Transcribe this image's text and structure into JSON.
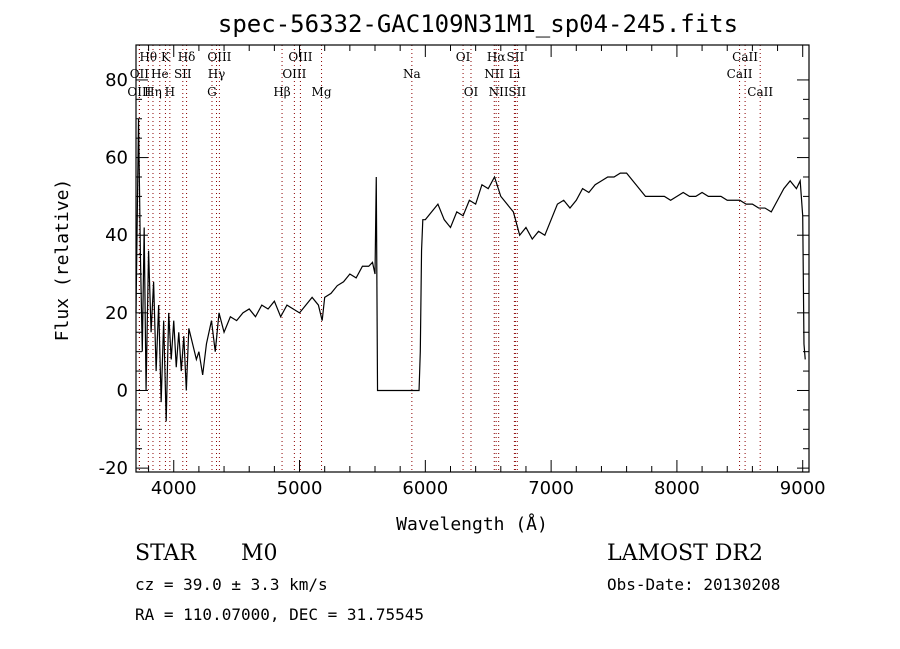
{
  "chart_data": {
    "type": "line",
    "title": "spec-56332-GAC109N31M1_sp04-245.fits",
    "xlabel": "Wavelength (Å)",
    "ylabel": "Flux (relative)",
    "xlim": [
      3700,
      9050
    ],
    "ylim": [
      -21,
      89
    ],
    "x_ticks": [
      "4000",
      "5000",
      "6000",
      "7000",
      "8000",
      "9000"
    ],
    "y_ticks": [
      "-20",
      "0",
      "20",
      "40",
      "60",
      "80"
    ],
    "grid": false,
    "line_color": "#000000",
    "marker_color": "#8b0000",
    "series": [
      {
        "x": [
          3700,
          3720,
          3735,
          3750,
          3765,
          3780,
          3800,
          3820,
          3840,
          3860,
          3880,
          3900,
          3920,
          3940,
          3960,
          3980,
          4000,
          4020,
          4040,
          4060,
          4080,
          4100,
          4120,
          4150,
          4180,
          4200,
          4230,
          4260,
          4300,
          4330,
          4360,
          4400,
          4450,
          4500,
          4550,
          4600,
          4650,
          4700,
          4750,
          4800,
          4850,
          4900,
          4950,
          5000,
          5050,
          5100,
          5150,
          5180,
          5200,
          5250,
          5300,
          5350,
          5400,
          5450,
          5500,
          5550,
          5580,
          5600,
          5610,
          5620,
          5630,
          5650,
          5700,
          5800,
          5900,
          5950,
          5960,
          5970,
          5980,
          6000,
          6050,
          6100,
          6150,
          6200,
          6250,
          6300,
          6350,
          6400,
          6450,
          6500,
          6550,
          6600,
          6650,
          6700,
          6750,
          6800,
          6850,
          6900,
          6950,
          7000,
          7050,
          7100,
          7150,
          7200,
          7250,
          7300,
          7350,
          7400,
          7450,
          7500,
          7550,
          7600,
          7650,
          7700,
          7750,
          7800,
          7850,
          7900,
          7950,
          8000,
          8050,
          8100,
          8150,
          8200,
          8250,
          8300,
          8350,
          8400,
          8450,
          8500,
          8550,
          8600,
          8650,
          8700,
          8750,
          8800,
          8850,
          8900,
          8950,
          8980,
          9000,
          9010,
          9020
        ],
        "y": [
          20,
          70,
          35,
          10,
          42,
          0,
          36,
          15,
          28,
          5,
          22,
          -3,
          18,
          -8,
          20,
          8,
          18,
          6,
          15,
          5,
          14,
          0,
          16,
          12,
          8,
          10,
          4,
          12,
          18,
          10,
          20,
          15,
          19,
          18,
          20,
          21,
          19,
          22,
          21,
          23,
          19,
          22,
          21,
          20,
          22,
          24,
          22,
          18,
          24,
          25,
          27,
          28,
          30,
          29,
          32,
          32,
          33,
          30,
          55,
          0,
          0,
          0,
          0,
          0,
          0,
          0,
          10,
          36,
          44,
          44,
          46,
          48,
          44,
          42,
          46,
          45,
          49,
          48,
          53,
          52,
          55,
          50,
          48,
          46,
          40,
          42,
          39,
          41,
          40,
          44,
          48,
          49,
          47,
          49,
          52,
          51,
          53,
          54,
          55,
          55,
          56,
          56,
          54,
          52,
          50,
          50,
          50,
          50,
          49,
          50,
          51,
          50,
          50,
          51,
          50,
          50,
          50,
          49,
          49,
          49,
          48,
          48,
          47,
          47,
          46,
          49,
          52,
          54,
          52,
          54,
          45,
          12,
          8
        ]
      }
    ],
    "spectral_lines": [
      {
        "label": "Hθ",
        "x": 3798,
        "row": 0
      },
      {
        "label": "OII",
        "x": 3727,
        "row": 1
      },
      {
        "label": "OIII",
        "x": 3727,
        "row": 2
      },
      {
        "label": "Hη",
        "x": 3835,
        "row": 2
      },
      {
        "label": "He",
        "x": 3889,
        "row": 1
      },
      {
        "label": "K",
        "x": 3934,
        "row": 0
      },
      {
        "label": "H",
        "x": 3969,
        "row": 2
      },
      {
        "label": "Hδ",
        "x": 4102,
        "row": 0
      },
      {
        "label": "SII",
        "x": 4072,
        "row": 1
      },
      {
        "label": "OIII",
        "x": 4363,
        "row": 0
      },
      {
        "label": "Hγ",
        "x": 4340,
        "row": 1
      },
      {
        "label": "G",
        "x": 4304,
        "row": 2
      },
      {
        "label": "OIII",
        "x": 5007,
        "row": 0
      },
      {
        "label": "OIII",
        "x": 4959,
        "row": 1
      },
      {
        "label": "Hβ",
        "x": 4861,
        "row": 2
      },
      {
        "label": "Mg",
        "x": 5175,
        "row": 2
      },
      {
        "label": "Na",
        "x": 5893,
        "row": 1
      },
      {
        "label": "OI",
        "x": 6300,
        "row": 0
      },
      {
        "label": "OI",
        "x": 6363,
        "row": 2
      },
      {
        "label": "Hα",
        "x": 6563,
        "row": 0
      },
      {
        "label": "NII",
        "x": 6548,
        "row": 1
      },
      {
        "label": "NII",
        "x": 6583,
        "row": 2
      },
      {
        "label": "SII",
        "x": 6716,
        "row": 0
      },
      {
        "label": "Li",
        "x": 6708,
        "row": 1
      },
      {
        "label": "SII",
        "x": 6731,
        "row": 2
      },
      {
        "label": "CaII",
        "x": 8542,
        "row": 0
      },
      {
        "label": "CaII",
        "x": 8498,
        "row": 1
      },
      {
        "label": "CaII",
        "x": 8662,
        "row": 2
      }
    ]
  },
  "info": {
    "object_class": "STAR",
    "subclass": "M0",
    "survey": "LAMOST DR2",
    "redshift": "cz = 39.0 ± 3.3 km/s",
    "obs_date": "Obs-Date: 20130208",
    "coordinates": "RA = 110.07000, DEC =  31.75545"
  }
}
